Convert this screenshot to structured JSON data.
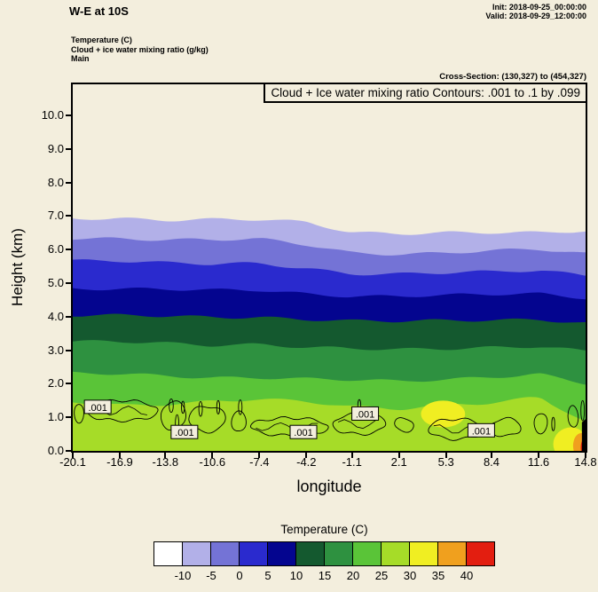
{
  "header": {
    "title": "W-E at 10S",
    "init": "Init: 2018-09-25_00:00:00",
    "valid": "Valid: 2018-09-29_12:00:00",
    "field1": "Temperature (C)",
    "field2": "Cloud + ice water mixing ratio (g/kg)",
    "field3": "Main",
    "cross_section": "Cross-Section: (130,327) to (454,327)"
  },
  "plot": {
    "contour_info": "Cloud + Ice water mixing ratio Contours: .001 to .1 by .099",
    "xlabel": "longitude",
    "ylabel": "Height (km)"
  },
  "chart_data": {
    "type": "heatmap",
    "title": "Cloud + Ice water mixing ratio Contours: .001 to .1 by .099",
    "xlabel": "longitude",
    "ylabel": "Height (km)",
    "background": "#f3eedd",
    "xlim": [
      -20.1,
      14.8
    ],
    "ylim": [
      0,
      10.93
    ],
    "x_values": [
      -20.1,
      -16.9,
      -13.8,
      -10.6,
      -7.4,
      -4.2,
      -1.1,
      2.1,
      5.3,
      8.4,
      11.6,
      14.8
    ],
    "x_ticks": [
      "-20.1",
      "-16.9",
      "-13.8",
      "-10.6",
      "-7.4",
      "-4.2",
      "-1.1",
      "2.1",
      "5.3",
      "8.4",
      "11.6",
      "14.8"
    ],
    "y_ticks": [
      "0.0",
      "1.0",
      "2.0",
      "3.0",
      "4.0",
      "5.0",
      "6.0",
      "7.0",
      "8.0",
      "9.0",
      "10.0"
    ],
    "colorbar": {
      "title": "Temperature (C)",
      "tick_labels": [
        "-10",
        "-5",
        "0",
        "5",
        "10",
        "15",
        "20",
        "25",
        "30",
        "35",
        "40"
      ],
      "colors": [
        "#ffffff",
        "#b2b0e8",
        "#7473d6",
        "#2a2ace",
        "#04058f",
        "#14592f",
        "#2e9140",
        "#5ac438",
        "#a6dc28",
        "#f0ee22",
        "#f0a01e",
        "#e31e10"
      ]
    },
    "temperature_bands": [
      {
        "level_c": "-10 to -5",
        "color": "#b2b0e8",
        "top_km": [
          6.93,
          6.95,
          6.9,
          6.9,
          6.88,
          6.8,
          6.52,
          6.5,
          6.52,
          6.5,
          6.48,
          6.55
        ]
      },
      {
        "level_c": "-5 to 0",
        "color": "#7473d6",
        "top_km": [
          6.35,
          6.35,
          6.3,
          6.28,
          6.3,
          6.15,
          5.92,
          5.88,
          5.9,
          5.95,
          6.0,
          5.88
        ]
      },
      {
        "level_c": "0 to 5",
        "color": "#2a2ace",
        "top_km": [
          5.7,
          5.68,
          5.6,
          5.55,
          5.58,
          5.45,
          5.3,
          5.28,
          5.3,
          5.32,
          5.38,
          5.25
        ]
      },
      {
        "level_c": "5 to 10",
        "color": "#04058f",
        "top_km": [
          4.85,
          4.83,
          4.8,
          4.78,
          4.8,
          4.7,
          4.62,
          4.6,
          4.62,
          4.66,
          4.7,
          4.58
        ]
      },
      {
        "level_c": "10 to 15",
        "color": "#14592f",
        "top_km": [
          4.05,
          4.03,
          4.0,
          3.98,
          4.0,
          3.94,
          3.88,
          3.85,
          3.87,
          3.9,
          3.94,
          3.82
        ]
      },
      {
        "level_c": "15 to 20",
        "color": "#2e9140",
        "top_km": [
          3.25,
          3.24,
          3.2,
          3.16,
          3.2,
          3.1,
          3.04,
          3.0,
          3.04,
          3.1,
          3.14,
          2.98
        ]
      },
      {
        "level_c": "20 to 25",
        "color": "#5ac438",
        "top_km": [
          2.3,
          2.28,
          2.24,
          2.2,
          2.2,
          2.14,
          2.1,
          2.06,
          2.14,
          2.22,
          2.3,
          2.0
        ]
      },
      {
        "level_c": "25 to 30",
        "color": "#a6dc28",
        "top_km": [
          1.45,
          1.35,
          1.4,
          1.5,
          1.55,
          1.45,
          1.3,
          1.25,
          1.4,
          1.45,
          1.6,
          0.85
        ]
      }
    ],
    "warm_patches": [
      {
        "level_c": "30 to 35",
        "color": "#f0ee22",
        "cx": 5.1,
        "cy": 1.1,
        "rx": 1.5,
        "ry": 0.4
      },
      {
        "level_c": "30 to 35",
        "color": "#f0ee22",
        "cx": 13.8,
        "cy": 0.2,
        "rx": 1.2,
        "ry": 0.5
      },
      {
        "level_c": "35 to 40",
        "color": "#f0a01e",
        "cx": 14.5,
        "cy": 0.15,
        "rx": 0.55,
        "ry": 0.38
      },
      {
        "level_c": "above 40",
        "color": "#e31e10",
        "cx": 14.75,
        "cy": 0.1,
        "rx": 0.28,
        "ry": 0.26
      }
    ],
    "terrain": {
      "color": "#000000",
      "x1": 14.55,
      "x2": 14.8,
      "top_km": 0.85
    },
    "cloud_contours": {
      "level": ".001",
      "bands": [
        {
          "x1": -20.0,
          "x2": -19.35,
          "cy": 1.15,
          "hw": 0.28
        },
        {
          "x1": -19.2,
          "x2": -14.3,
          "cy": 1.2,
          "hw": 0.3
        },
        {
          "x1": -14.1,
          "x2": -12.4,
          "cy": 1.05,
          "hw": 0.42
        },
        {
          "x1": -12.2,
          "x2": -9.7,
          "cy": 0.95,
          "hw": 0.38
        },
        {
          "x1": -9.3,
          "x2": -8.3,
          "cy": 0.85,
          "hw": 0.3
        },
        {
          "x1": -8.0,
          "x2": -2.7,
          "cy": 0.72,
          "hw": 0.26
        },
        {
          "x1": -2.4,
          "x2": 1.2,
          "cy": 0.8,
          "hw": 0.3
        },
        {
          "x1": 1.8,
          "x2": 3.1,
          "cy": 0.78,
          "hw": 0.2
        },
        {
          "x1": 4.1,
          "x2": 7.9,
          "cy": 0.65,
          "hw": 0.3
        },
        {
          "x1": 8.3,
          "x2": 10.4,
          "cy": 0.7,
          "hw": 0.26
        },
        {
          "x1": 11.3,
          "x2": 12.2,
          "cy": 0.85,
          "hw": 0.3
        },
        {
          "x1": 13.6,
          "x2": 14.3,
          "cy": 1.0,
          "hw": 0.32
        }
      ],
      "circles": [
        {
          "cx": -13.4,
          "cy": 1.35,
          "rx": 0.14,
          "ry": 0.2
        },
        {
          "cx": -13.0,
          "cy": 0.8,
          "rx": 0.12,
          "ry": 0.28
        },
        {
          "cx": -12.6,
          "cy": 1.3,
          "rx": 0.1,
          "ry": 0.18
        },
        {
          "cx": -11.4,
          "cy": 1.25,
          "rx": 0.12,
          "ry": 0.22
        },
        {
          "cx": -10.2,
          "cy": 1.3,
          "rx": 0.1,
          "ry": 0.2
        },
        {
          "cx": -8.7,
          "cy": 1.3,
          "rx": 0.12,
          "ry": 0.22
        },
        {
          "cx": -0.6,
          "cy": 1.35,
          "rx": 0.1,
          "ry": 0.18
        },
        {
          "cx": 12.6,
          "cy": 0.8,
          "rx": 0.1,
          "ry": 0.2
        },
        {
          "cx": 14.6,
          "cy": 1.2,
          "rx": 0.12,
          "ry": 0.3
        }
      ],
      "labels": [
        {
          "text": ".001",
          "x": -18.4,
          "km": 1.3
        },
        {
          "text": ".001",
          "x": -12.5,
          "km": 0.55
        },
        {
          "text": ".001",
          "x": -4.4,
          "km": 0.55
        },
        {
          "text": ".001",
          "x": -0.2,
          "km": 1.1
        },
        {
          "text": ".001",
          "x": 7.7,
          "km": 0.6
        }
      ]
    }
  }
}
